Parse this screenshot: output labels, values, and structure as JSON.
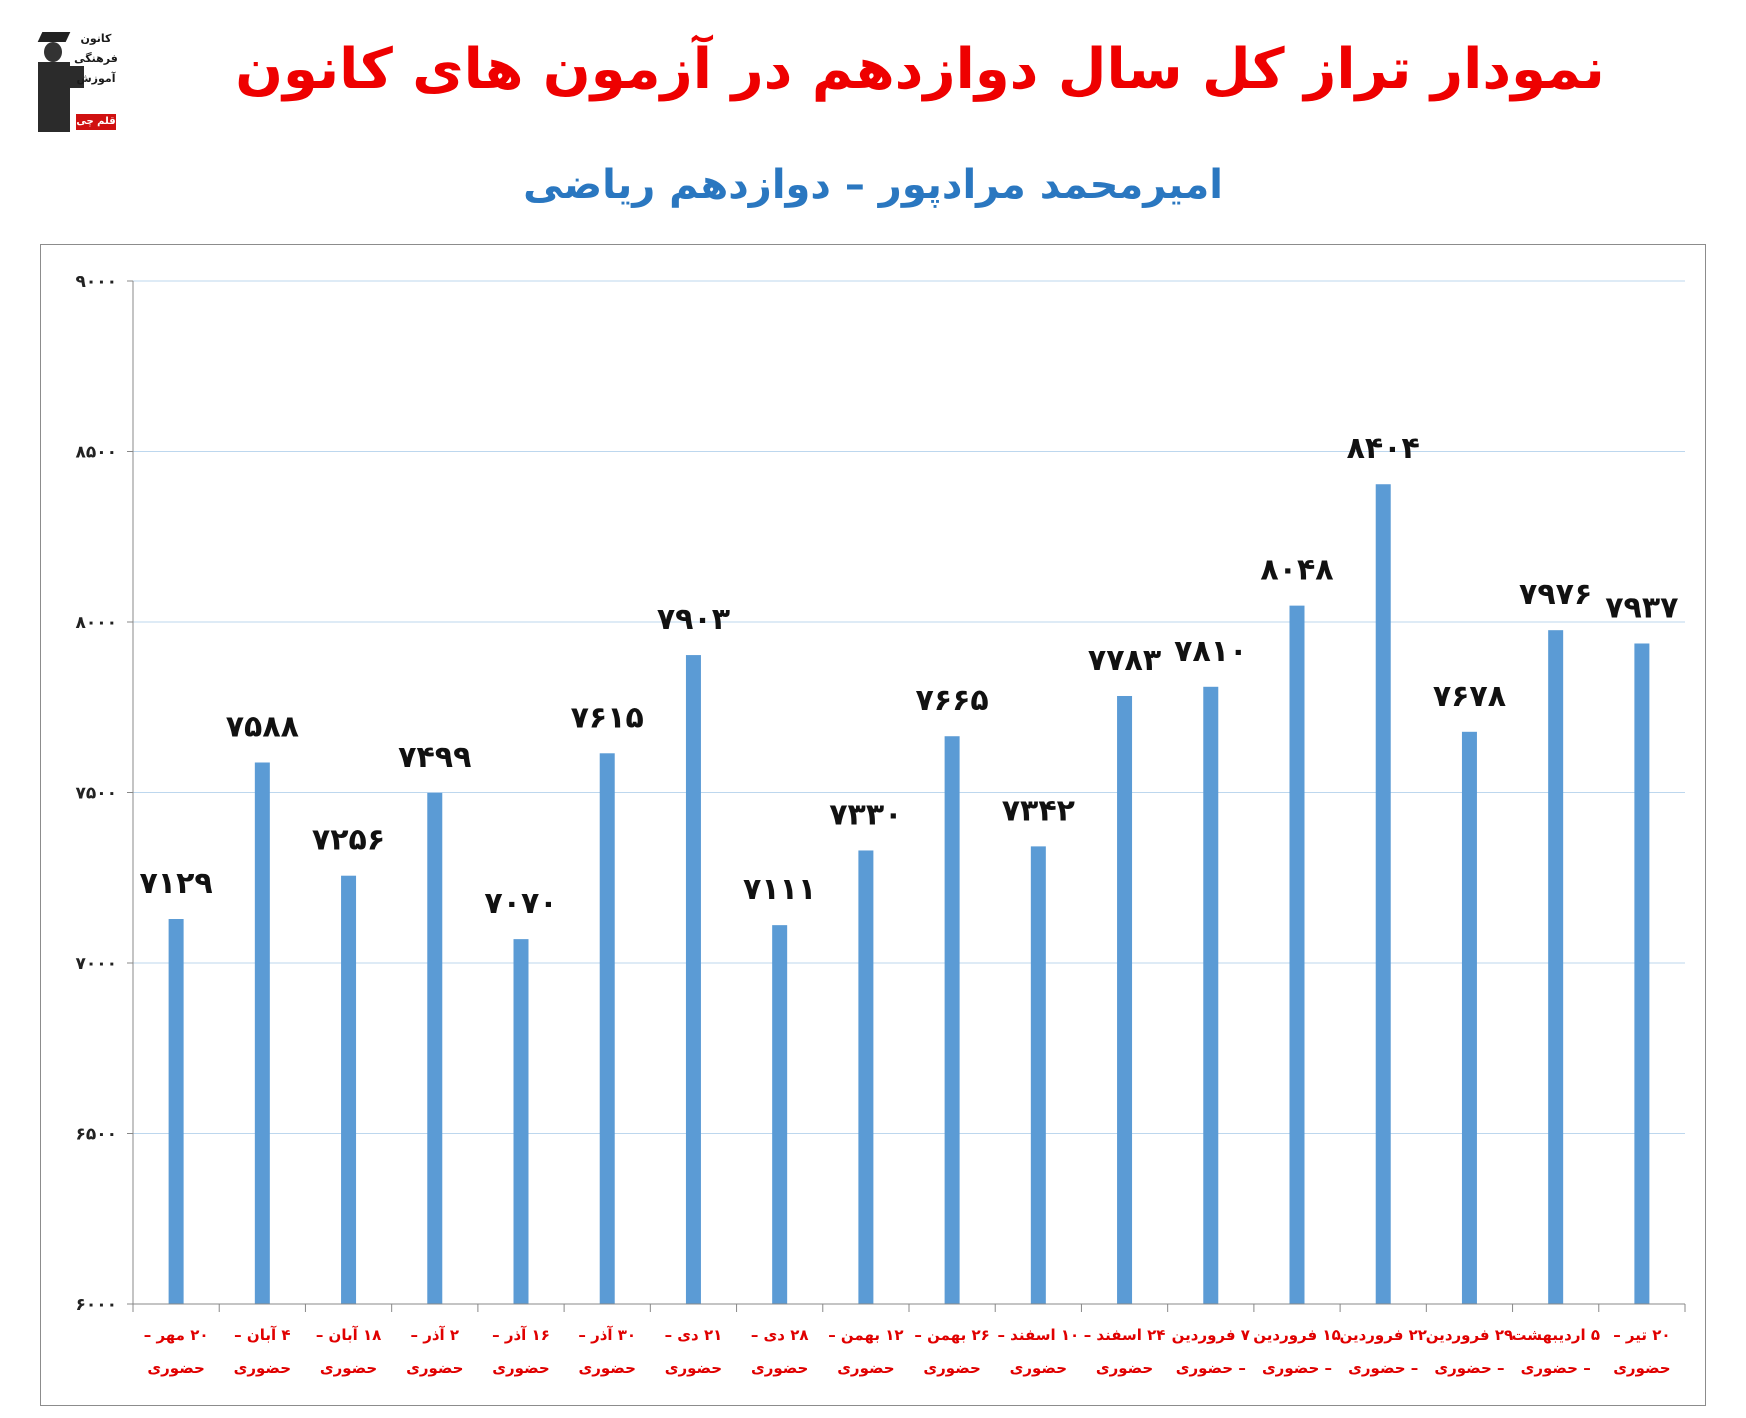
{
  "header": {
    "title": "نمودار تراز کل سال دوازدهم در آزمون های کانون",
    "subtitle": "امیرمحمد مرادپور – دوازدهم ریاضی"
  },
  "logo": {
    "lines": [
      "کانون",
      "فرهنگی",
      "آموزش"
    ],
    "tag": "قلم چی"
  },
  "colors": {
    "title": "#ee0000",
    "subtitle": "#2a77c0",
    "bar": "#5b9bd5",
    "gridline": "#bdd7ee",
    "axis_label": "#e00000"
  },
  "chart_data": {
    "type": "bar",
    "categories": [
      [
        "۲۰ مهر –",
        "حضوری"
      ],
      [
        "۴ آبان –",
        "حضوری"
      ],
      [
        "۱۸ آبان –",
        "حضوری"
      ],
      [
        "۲ آذر –",
        "حضوری"
      ],
      [
        "۱۶ آذر –",
        "حضوری"
      ],
      [
        "۳۰ آذر –",
        "حضوری"
      ],
      [
        "۲۱ دی –",
        "حضوری"
      ],
      [
        "۲۸ دی –",
        "حضوری"
      ],
      [
        "۱۲ بهمن –",
        "حضوری"
      ],
      [
        "۲۶ بهمن –",
        "حضوری"
      ],
      [
        "۱۰ اسفند –",
        "حضوری"
      ],
      [
        "۲۴ اسفند –",
        "حضوری"
      ],
      [
        "۷ فروردین",
        "– حضوری"
      ],
      [
        "۱۵ فروردین",
        "– حضوری"
      ],
      [
        "۲۲ فروردین",
        "– حضوری"
      ],
      [
        "۲۹ فروردین",
        "– حضوری"
      ],
      [
        "۵ اردیبهشت",
        "– حضوری"
      ],
      [
        "۲۰ تیر –",
        "حضوری"
      ]
    ],
    "values": [
      7129,
      7588,
      7256,
      7499,
      7070,
      7615,
      7903,
      7111,
      7330,
      7665,
      7342,
      7783,
      7810,
      8048,
      8404,
      7678,
      7976,
      7937
    ],
    "value_labels": [
      "۷۱۲۹",
      "۷۵۸۸",
      "۷۲۵۶",
      "۷۴۹۹",
      "۷۰۷۰",
      "۷۶۱۵",
      "۷۹۰۳",
      "۷۱۱۱",
      "۷۳۳۰",
      "۷۶۶۵",
      "۷۳۴۲",
      "۷۷۸۳",
      "۷۸۱۰",
      "۸۰۴۸",
      "۸۴۰۴",
      "۷۶۷۸",
      "۷۹۷۶",
      "۷۹۳۷"
    ],
    "ylim": [
      6000,
      9000
    ],
    "yticks": [
      6000,
      6500,
      7000,
      7500,
      8000,
      8500,
      9000
    ],
    "ytick_labels": [
      "۶۰۰۰",
      "۶۵۰۰",
      "۷۰۰۰",
      "۷۵۰۰",
      "۸۰۰۰",
      "۸۵۰۰",
      "۹۰۰۰"
    ],
    "grid": true,
    "legend": "none"
  }
}
